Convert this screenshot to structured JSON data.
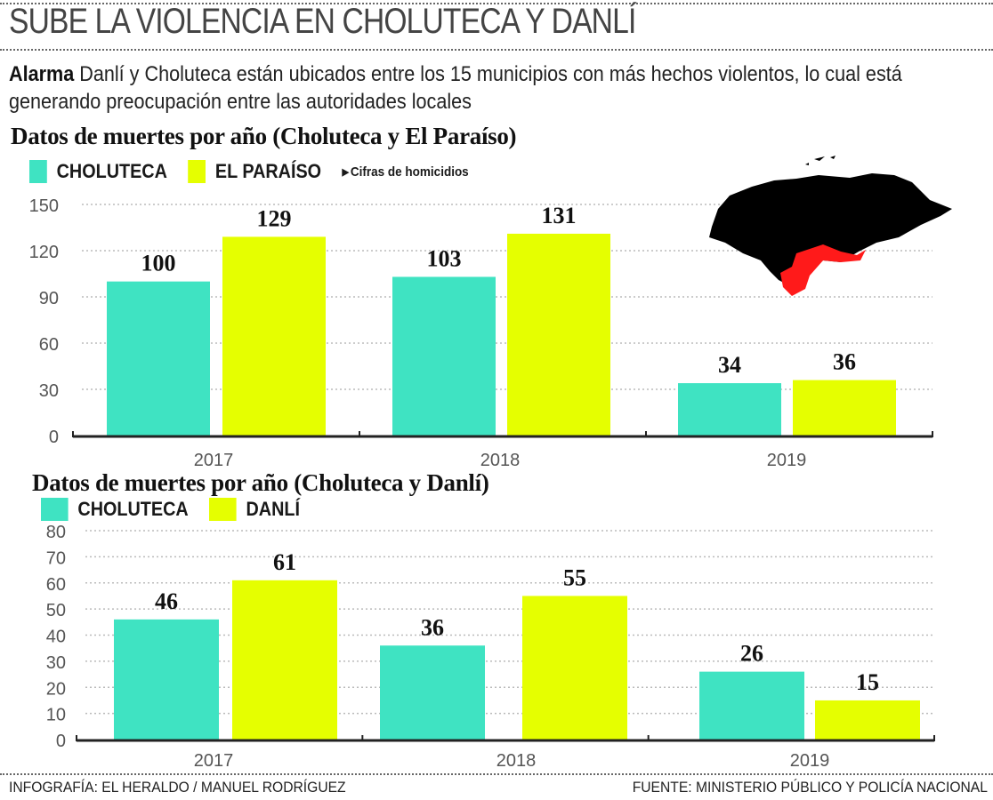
{
  "header": {
    "title": "SUBE LA VIOLENCIA EN CHOLUTECA Y DANLÍ",
    "intro_lead": "Alarma",
    "intro_text": " Danlí y Choluteca están ubicados entre los 15 municipios con más hechos violentos, lo cual está generando preocupación entre las autoridades locales"
  },
  "colors": {
    "choluteca": "#3fe3c2",
    "other": "#e5ff00",
    "map_land": "#000000",
    "map_highlight": "#ff1a1a"
  },
  "map_icon": "honduras-map-highlighting-choluteca-el-paraiso",
  "chart_data": [
    {
      "type": "bar",
      "title": "Datos de muertes por año (Choluteca y El Paraíso)",
      "note": "Cifras de homicidios",
      "categories": [
        "2017",
        "2018",
        "2019"
      ],
      "series": [
        {
          "name": "CHOLUTECA",
          "values": [
            100,
            103,
            34
          ]
        },
        {
          "name": "EL PARAÍSO",
          "values": [
            129,
            131,
            36
          ]
        }
      ],
      "ylim": [
        0,
        150
      ],
      "yticks": [
        0,
        30,
        60,
        90,
        120,
        150
      ],
      "grid": true,
      "legend": "top-left"
    },
    {
      "type": "bar",
      "title": "Datos de muertes por año (Choluteca y Danlí)",
      "categories": [
        "2017",
        "2018",
        "2019"
      ],
      "series": [
        {
          "name": "CHOLUTECA",
          "values": [
            46,
            36,
            26
          ]
        },
        {
          "name": "DANLÍ",
          "values": [
            61,
            55,
            15
          ]
        }
      ],
      "ylim": [
        0,
        80
      ],
      "yticks": [
        0,
        10,
        20,
        30,
        40,
        50,
        60,
        70,
        80
      ],
      "grid": true,
      "legend": "top-left"
    }
  ],
  "footer": {
    "credit": "INFOGRAFÍA: EL HERALDO / MANUEL RODRÍGUEZ",
    "source": "FUENTE: MINISTERIO PÚBLICO Y POLICÍA NACIONAL"
  }
}
